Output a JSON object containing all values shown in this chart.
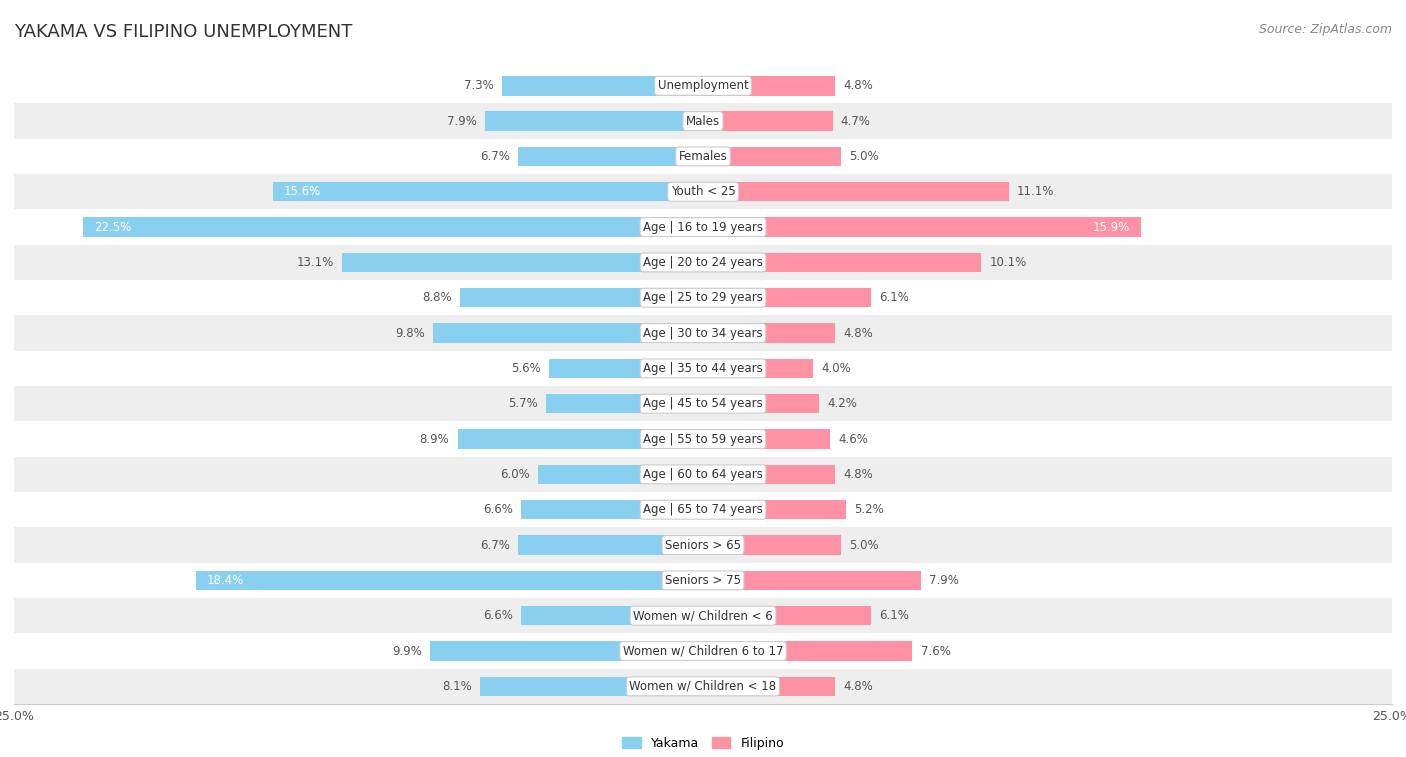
{
  "title": "YAKAMA VS FILIPINO UNEMPLOYMENT",
  "source": "Source: ZipAtlas.com",
  "categories": [
    "Unemployment",
    "Males",
    "Females",
    "Youth < 25",
    "Age | 16 to 19 years",
    "Age | 20 to 24 years",
    "Age | 25 to 29 years",
    "Age | 30 to 34 years",
    "Age | 35 to 44 years",
    "Age | 45 to 54 years",
    "Age | 55 to 59 years",
    "Age | 60 to 64 years",
    "Age | 65 to 74 years",
    "Seniors > 65",
    "Seniors > 75",
    "Women w/ Children < 6",
    "Women w/ Children 6 to 17",
    "Women w/ Children < 18"
  ],
  "yakama": [
    7.3,
    7.9,
    6.7,
    15.6,
    22.5,
    13.1,
    8.8,
    9.8,
    5.6,
    5.7,
    8.9,
    6.0,
    6.6,
    6.7,
    18.4,
    6.6,
    9.9,
    8.1
  ],
  "filipino": [
    4.8,
    4.7,
    5.0,
    11.1,
    15.9,
    10.1,
    6.1,
    4.8,
    4.0,
    4.2,
    4.6,
    4.8,
    5.2,
    5.0,
    7.9,
    6.1,
    7.6,
    4.8
  ],
  "yakama_color": "#89CFF0",
  "filipino_color": "#FF91A4",
  "highlight_yakama": [
    3,
    4,
    14
  ],
  "highlight_filipino": [
    4
  ],
  "bg_color": "#ffffff",
  "row_alt_color": "#eeeeee",
  "row_color": "#ffffff",
  "xlim": 25.0,
  "bar_height": 0.55,
  "title_fontsize": 13,
  "label_fontsize": 8.5,
  "tick_fontsize": 9,
  "source_fontsize": 9
}
